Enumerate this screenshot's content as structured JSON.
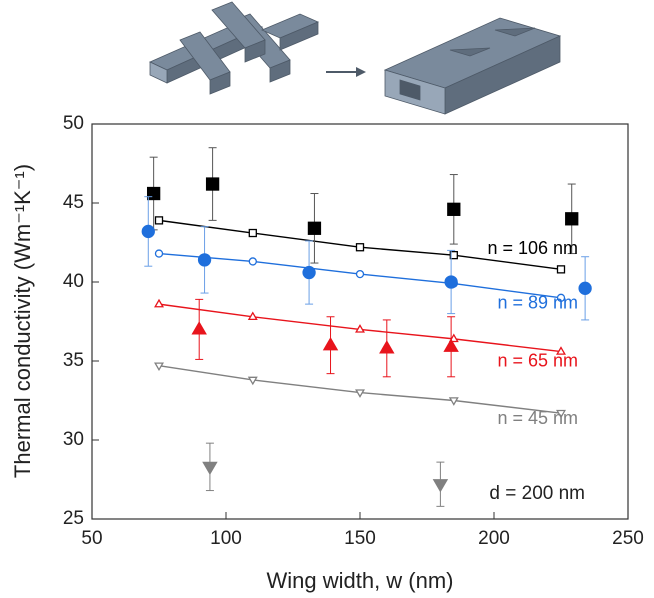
{
  "chart_data": {
    "type": "scatter",
    "xlabel": "Wing width, w (nm)",
    "ylabel": "Thermal conductivity (Wm⁻¹K⁻¹)",
    "annotation": "d = 200 nm",
    "xlim": [
      50,
      250
    ],
    "xticks": [
      50,
      100,
      150,
      200,
      250
    ],
    "ylim": [
      25,
      50
    ],
    "yticks": [
      25,
      30,
      35,
      40,
      45,
      50
    ],
    "series": [
      {
        "name": "n = 106 nm",
        "color": "#000000",
        "errcolor": "#555555",
        "marker": "square",
        "measured": {
          "x": [
            73,
            95,
            133,
            185,
            229
          ],
          "values": [
            45.6,
            46.2,
            43.4,
            44.6,
            44.0
          ],
          "errors": [
            2.3,
            2.3,
            2.2,
            2.2,
            2.2
          ]
        },
        "simulated": {
          "x": [
            75,
            110,
            150,
            185,
            225
          ],
          "values": [
            43.9,
            43.1,
            42.2,
            41.7,
            40.8
          ]
        }
      },
      {
        "name": "n = 89 nm",
        "color": "#1f6fdc",
        "errcolor": "#6a9fe6",
        "marker": "circle",
        "measured": {
          "x": [
            71,
            92,
            131,
            184,
            234
          ],
          "values": [
            43.2,
            41.4,
            40.6,
            40.0,
            39.6
          ],
          "errors": [
            2.2,
            2.1,
            2.0,
            2.0,
            2.0
          ]
        },
        "simulated": {
          "x": [
            75,
            110,
            150,
            185,
            225
          ],
          "values": [
            41.8,
            41.3,
            40.5,
            39.9,
            39.0
          ]
        }
      },
      {
        "name": "n = 65 nm",
        "color": "#e8141c",
        "errcolor": "#e8141c",
        "marker": "triangle",
        "measured": {
          "x": [
            90,
            139,
            160,
            184
          ],
          "values": [
            37.0,
            36.0,
            35.8,
            35.9
          ],
          "errors": [
            1.9,
            1.8,
            1.8,
            1.9
          ]
        },
        "simulated": {
          "x": [
            75,
            110,
            150,
            185,
            225
          ],
          "values": [
            38.6,
            37.8,
            37.0,
            36.4,
            35.6
          ]
        }
      },
      {
        "name": "n = 45 nm",
        "color": "#808080",
        "errcolor": "#808080",
        "marker": "triangle-down",
        "measured": {
          "x": [
            94,
            180
          ],
          "values": [
            28.3,
            27.2
          ],
          "errors": [
            1.5,
            1.4
          ]
        },
        "simulated": {
          "x": [
            75,
            110,
            150,
            185,
            225
          ],
          "values": [
            34.7,
            33.8,
            33.0,
            32.5,
            31.7
          ]
        }
      }
    ]
  }
}
